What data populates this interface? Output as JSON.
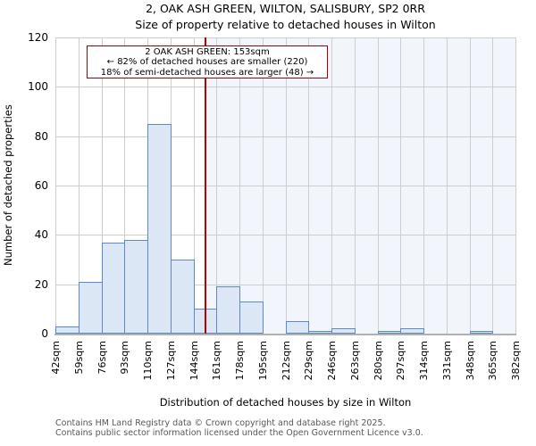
{
  "chart_data": {
    "type": "bar",
    "title": "2, OAK ASH GREEN, WILTON, SALISBURY, SP2 0RR",
    "subtitle": "Size of property relative to detached houses in Wilton",
    "xlabel": "Distribution of detached houses by size in Wilton",
    "ylabel": "Number of detached properties",
    "xlim": [
      42,
      382
    ],
    "ylim": [
      0,
      120
    ],
    "yticks": [
      0,
      20,
      40,
      60,
      80,
      100,
      120
    ],
    "xticks": [
      42,
      59,
      76,
      93,
      110,
      127,
      144,
      161,
      178,
      195,
      212,
      229,
      246,
      263,
      280,
      297,
      314,
      331,
      348,
      365,
      382
    ],
    "xtick_suffix": "sqm",
    "bin_width_sqm": 17,
    "bin_starts": [
      42,
      59,
      76,
      93,
      110,
      127,
      144,
      161,
      178,
      195,
      212,
      229,
      246,
      263,
      280,
      297,
      314,
      331,
      348,
      365
    ],
    "values": [
      3,
      21,
      37,
      38,
      85,
      30,
      10,
      19,
      13,
      0,
      5,
      1,
      2,
      0,
      1,
      2,
      0,
      0,
      1,
      0
    ],
    "grid": true,
    "legend": null,
    "marker": {
      "value_sqm": 153
    },
    "shade_from_sqm": 153
  },
  "annotation": {
    "line1": "2 OAK ASH GREEN: 153sqm",
    "line2": "← 82% of detached houses are smaller (220)",
    "line3": "18% of semi-detached houses are larger (48) →"
  },
  "footer": {
    "line1": "Contains HM Land Registry data © Crown copyright and database right 2025.",
    "line2": "Contains public sector information licensed under the Open Government Licence v3.0."
  },
  "colors": {
    "bar_fill": "#dce7f5",
    "bar_edge": "#5b8ac6",
    "grid": "#cdcdcd",
    "spine": "#b0b0b0",
    "marker_line": "#bb0000",
    "shade": "#f2f5fc",
    "annotation_border": "#aa0000",
    "annotation_background": "#ffffff",
    "footer_text": "#585858"
  }
}
